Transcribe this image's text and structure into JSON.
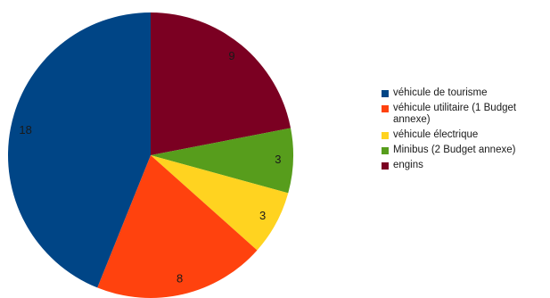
{
  "chart_data": {
    "type": "pie",
    "title": "",
    "start_angle_deg": 0,
    "direction": "clockwise",
    "slices": [
      {
        "label": "engins",
        "value": 9,
        "color": "#7b0022"
      },
      {
        "label": "Minibus (2 Budget annexe)",
        "value": 3,
        "color": "#579d1c"
      },
      {
        "label": "véhicule électrique",
        "value": 3,
        "color": "#ffd320"
      },
      {
        "label": "véhicule utilitaire (1 Budget annexe)",
        "value": 8,
        "color": "#ff420e"
      },
      {
        "label": "véhicule de tourisme",
        "value": 18,
        "color": "#004586"
      }
    ],
    "legend": {
      "position": "right",
      "entries": [
        {
          "label": "véhicule de tourisme",
          "color": "#004586"
        },
        {
          "label": "véhicule utilitaire (1 Budget annexe)",
          "color": "#ff420e"
        },
        {
          "label": "véhicule électrique",
          "color": "#ffd320"
        },
        {
          "label": "Minibus (2 Budget annexe)",
          "color": "#579d1c"
        },
        {
          "label": "engins",
          "color": "#7b0022"
        }
      ]
    }
  }
}
